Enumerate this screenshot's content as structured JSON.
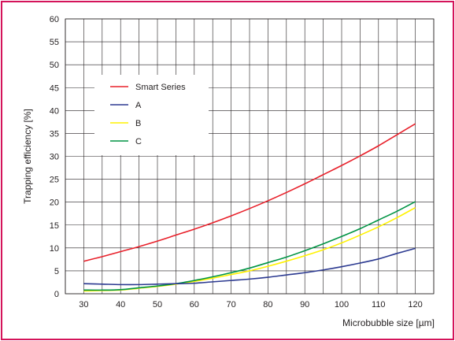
{
  "chart_data": {
    "type": "line",
    "title": "",
    "xlabel": "Microbubble size [µm]",
    "ylabel": "Trapping efficiency [%]",
    "xlim": [
      25,
      125
    ],
    "ylim": [
      0,
      60
    ],
    "xticks": [
      30,
      40,
      50,
      60,
      70,
      80,
      90,
      100,
      110,
      120
    ],
    "yticks": [
      0,
      5,
      10,
      15,
      20,
      25,
      30,
      35,
      40,
      45,
      50,
      55,
      60
    ],
    "grid": true,
    "legend_position": "upper-left",
    "series": [
      {
        "name": "Smart Series",
        "color": "#e8202a",
        "x": [
          30,
          35,
          40,
          45,
          50,
          55,
          60,
          65,
          70,
          75,
          80,
          85,
          90,
          95,
          100,
          105,
          110,
          115,
          120
        ],
        "y": [
          7.1,
          8.1,
          9.2,
          10.3,
          11.5,
          12.8,
          14.1,
          15.5,
          17.0,
          18.6,
          20.3,
          22.1,
          24.0,
          26.0,
          28.0,
          30.1,
          32.3,
          34.7,
          37.1
        ]
      },
      {
        "name": "A",
        "color": "#2b3990",
        "x": [
          30,
          35,
          40,
          45,
          50,
          55,
          60,
          65,
          70,
          75,
          80,
          85,
          90,
          95,
          100,
          105,
          110,
          115,
          120
        ],
        "y": [
          2.2,
          2.1,
          2.0,
          2.0,
          2.1,
          2.2,
          2.3,
          2.6,
          2.9,
          3.2,
          3.6,
          4.1,
          4.6,
          5.2,
          5.9,
          6.7,
          7.6,
          8.8,
          9.9
        ]
      },
      {
        "name": "B",
        "color": "#fff200",
        "x": [
          30,
          35,
          40,
          45,
          50,
          55,
          60,
          65,
          70,
          75,
          80,
          85,
          90,
          95,
          100,
          105,
          110,
          115,
          120
        ],
        "y": [
          0.6,
          0.7,
          0.8,
          1.2,
          1.6,
          2.1,
          2.7,
          3.4,
          4.2,
          5.0,
          6.0,
          7.1,
          8.3,
          9.6,
          11.1,
          12.8,
          14.6,
          16.6,
          18.8
        ]
      },
      {
        "name": "C",
        "color": "#009444",
        "x": [
          30,
          35,
          40,
          45,
          50,
          55,
          60,
          65,
          70,
          75,
          80,
          85,
          90,
          95,
          100,
          105,
          110,
          115,
          120
        ],
        "y": [
          0.8,
          0.8,
          0.9,
          1.3,
          1.7,
          2.2,
          2.9,
          3.7,
          4.6,
          5.6,
          6.8,
          8.0,
          9.4,
          10.9,
          12.5,
          14.2,
          16.1,
          18.0,
          20.1
        ]
      }
    ]
  }
}
